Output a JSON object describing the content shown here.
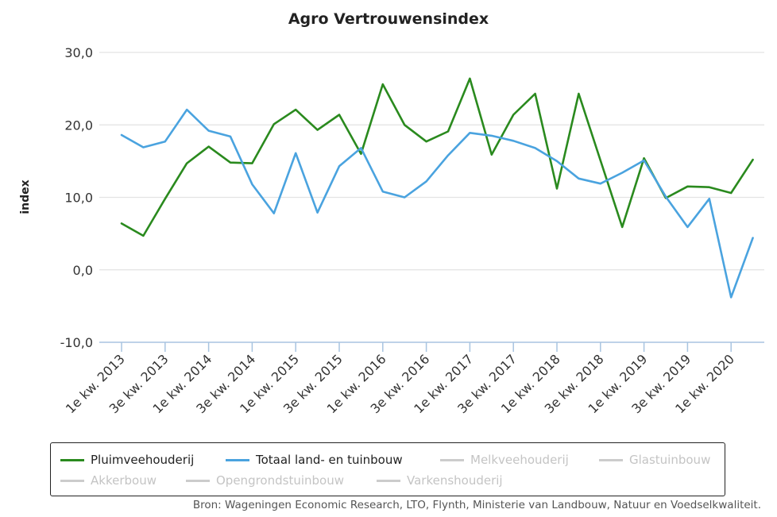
{
  "chart_data": {
    "type": "line",
    "title": "Agro Vertrouwensindex",
    "ylabel": "index",
    "ylim": [
      -10,
      30
    ],
    "yticks": [
      "30,0",
      "20,0",
      "10,0",
      "0,0",
      "-10,0"
    ],
    "yticks_values": [
      30,
      20,
      10,
      0,
      -10
    ],
    "x": [
      "1e kw. 2013",
      "2e kw. 2013",
      "3e kw. 2013",
      "4e kw. 2013",
      "1e kw. 2014",
      "2e kw. 2014",
      "3e kw. 2014",
      "4e kw. 2014",
      "1e kw. 2015",
      "2e kw. 2015",
      "3e kw. 2015",
      "4e kw. 2015",
      "1e kw. 2016",
      "2e kw. 2016",
      "3e kw. 2016",
      "4e kw. 2016",
      "1e kw. 2017",
      "2e kw. 2017",
      "3e kw. 2017",
      "4e kw. 2017",
      "1e kw. 2018",
      "2e kw. 2018",
      "3e kw. 2018",
      "4e kw. 2018",
      "1e kw. 2019",
      "2e kw. 2019",
      "3e kw. 2019",
      "4e kw. 2019",
      "1e kw. 2020",
      "2e kw. 2020"
    ],
    "xtick_labels": [
      "1e kw. 2013",
      "3e kw. 2013",
      "1e kw. 2014",
      "3e kw. 2014",
      "1e kw. 2015",
      "3e kw. 2015",
      "1e kw. 2016",
      "3e kw. 2016",
      "1e kw. 2017",
      "3e kw. 2017",
      "1e kw. 2018",
      "3e kw. 2018",
      "1e kw. 2019",
      "3e kw. 2019",
      "1e kw. 2020"
    ],
    "series": [
      {
        "name": "Pluimveehouderij",
        "color": "#2a8a1e",
        "values": [
          6.4,
          4.7,
          9.8,
          14.7,
          17.0,
          14.8,
          14.7,
          20.1,
          22.1,
          19.3,
          21.4,
          16.0,
          25.6,
          20.0,
          17.7,
          19.1,
          26.4,
          15.9,
          21.4,
          24.3,
          11.2,
          24.3,
          15.1,
          5.9,
          15.4,
          9.9,
          11.5,
          11.4,
          10.6,
          15.2
        ]
      },
      {
        "name": "Totaal land- en tuinbouw",
        "color": "#4aa3df",
        "values": [
          18.6,
          16.9,
          17.7,
          22.1,
          19.2,
          18.4,
          11.8,
          7.8,
          16.1,
          7.9,
          14.3,
          16.8,
          10.8,
          10.0,
          12.2,
          15.8,
          18.9,
          18.5,
          17.8,
          16.8,
          15.0,
          12.6,
          11.9,
          13.4,
          15.1,
          10.1,
          5.9,
          9.8,
          -3.8,
          4.4
        ]
      }
    ],
    "hidden_series": [
      "Melkveehouderij",
      "Glastuinbouw",
      "Akkerbouw",
      "Opengrondstuinbouw",
      "Varkenshouderij"
    ],
    "grid": true,
    "legend_position": "bottom"
  },
  "legend": {
    "items": [
      {
        "label": "Pluimveehouderij",
        "color": "#2a8a1e",
        "active": true
      },
      {
        "label": "Totaal land- en tuinbouw",
        "color": "#4aa3df",
        "active": true
      },
      {
        "label": "Melkveehouderij",
        "color": "#cccccc",
        "active": false
      },
      {
        "label": "Glastuinbouw",
        "color": "#cccccc",
        "active": false
      },
      {
        "label": "Akkerbouw",
        "color": "#cccccc",
        "active": false
      },
      {
        "label": "Opengrondstuinbouw",
        "color": "#cccccc",
        "active": false
      },
      {
        "label": "Varkenshouderij",
        "color": "#cccccc",
        "active": false
      }
    ]
  },
  "source": "Bron: Wageningen Economic Research, LTO, Flynth, Ministerie van Landbouw, Natuur en Voedselkwaliteit."
}
